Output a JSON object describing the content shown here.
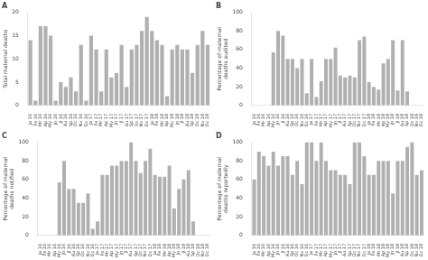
{
  "chart_data": [
    {
      "type": "bar",
      "title": "A",
      "ylabel": "Total maternal deaths",
      "categories": [
        "Ja 16",
        "Fe 16",
        "Mr 16",
        "Ap 16",
        "My 16",
        "Jn 16",
        "Jl 16",
        "Au 16",
        "Sp 16",
        "Oc 16",
        "Nv 16",
        "Dc 16",
        "Ja 17",
        "Fe 17",
        "Mr 17",
        "Ap 17",
        "My 17",
        "Jn 17",
        "Jl 17",
        "Au 17",
        "Sp 17",
        "Oc 17",
        "Nv 17",
        "Dc 17",
        "Ja 18",
        "Fe 18",
        "Mr 18",
        "Ap 18",
        "My 18",
        "Jn 18",
        "Jl 18",
        "Au 18",
        "Sp 18",
        "Oc 18",
        "Nv 18",
        "Dc 18"
      ],
      "values": [
        14,
        1,
        17,
        17,
        15,
        1,
        5,
        4,
        6,
        3,
        13,
        1,
        15,
        12,
        3,
        12,
        6,
        7,
        13,
        4,
        12,
        13,
        16,
        19,
        16,
        14,
        13,
        2,
        12,
        13,
        12,
        12,
        7,
        13,
        16,
        13
      ],
      "color": "#b0b0b0",
      "ylim": [
        0,
        20
      ],
      "yticks": [
        0,
        5,
        10,
        15,
        20
      ],
      "grid": false
    },
    {
      "type": "bar",
      "title": "B",
      "ylabel": "Percentage of maternal deaths audited",
      "categories": [
        "Ja 16",
        "Fe 16",
        "Mr 16",
        "Ap 16",
        "My 16",
        "Jn 16",
        "Jl 16",
        "Au 16",
        "Sp 16",
        "Oc 16",
        "Nv 16",
        "Dc 16",
        "Ja 17",
        "Fe 17",
        "Mr 17",
        "Ap 17",
        "My 17",
        "Jn 17",
        "Jl 17",
        "Au 17",
        "Sp 17",
        "Oc 17",
        "Nv 17",
        "Dc 17",
        "Ja 18",
        "Fe 18",
        "Mr 18",
        "Ap 18",
        "My 18",
        "Jn 18",
        "Jl 18",
        "Au 18",
        "Sp 18",
        "Oc 18",
        "Nv 18",
        "Dc 18"
      ],
      "values": [
        0,
        0,
        0,
        0,
        57,
        80,
        75,
        50,
        50,
        40,
        50,
        13,
        50,
        9,
        26,
        50,
        50,
        62,
        32,
        30,
        32,
        30,
        70,
        74,
        25,
        20,
        17,
        45,
        50,
        70,
        16,
        70,
        15,
        0,
        0,
        0
      ],
      "color": "#b0b0b0",
      "ylim": [
        0,
        100
      ],
      "yticks": [
        0,
        20,
        40,
        60,
        80,
        100
      ],
      "grid": false
    },
    {
      "type": "bar",
      "title": "C",
      "ylabel": "Percentage of maternal deaths notified",
      "categories": [
        "Ja 16",
        "Fe 16",
        "Mr 16",
        "Ap 16",
        "My 16",
        "Jn 16",
        "Jl 16",
        "Au 16",
        "Sp 16",
        "Oc 16",
        "Nv 16",
        "Dc 16",
        "Ja 17",
        "Fe 17",
        "Mr 17",
        "Ap 17",
        "My 17",
        "Jn 17",
        "Jl 17",
        "Au 17",
        "Sp 17",
        "Oc 17",
        "Nv 17",
        "Dc 17",
        "Ja 18",
        "Fe 18",
        "Mr 18",
        "Ap 18",
        "My 18",
        "Jn 18",
        "Jl 18",
        "Au 18",
        "Sp 18",
        "Oc 18",
        "Nv 18",
        "Dc 18"
      ],
      "values": [
        0,
        0,
        0,
        0,
        57,
        80,
        50,
        50,
        35,
        35,
        45,
        7,
        15,
        65,
        65,
        75,
        75,
        80,
        80,
        100,
        80,
        67,
        80,
        93,
        65,
        63,
        63,
        75,
        29,
        50,
        60,
        70,
        15,
        0,
        0,
        0
      ],
      "color": "#b0b0b0",
      "ylim": [
        0,
        100
      ],
      "yticks": [
        0,
        20,
        40,
        60,
        80,
        100
      ],
      "grid": false
    },
    {
      "type": "bar",
      "title": "D",
      "ylabel": "Percentage of maternal deaths reportedly",
      "categories": [
        "Ja 16",
        "Fe 16",
        "Mr 16",
        "Ap 16",
        "My 16",
        "Jn 16",
        "Jl 16",
        "Au 16",
        "Sp 16",
        "Oc 16",
        "Nv 16",
        "Dc 16",
        "Ja 17",
        "Fe 17",
        "Mr 17",
        "Ap 17",
        "My 17",
        "Jn 17",
        "Jl 17",
        "Au 17",
        "Sp 17",
        "Oc 17",
        "Nv 17",
        "Dc 17",
        "Ja 18",
        "Fe 18",
        "Mr 18",
        "Ap 18",
        "My 18",
        "Jn 18",
        "Jl 18",
        "Au 18",
        "Sp 18",
        "Oc 18",
        "Nv 18",
        "Dc 18"
      ],
      "values": [
        60,
        90,
        85,
        75,
        90,
        75,
        85,
        85,
        65,
        80,
        55,
        100,
        100,
        80,
        100,
        80,
        70,
        70,
        65,
        65,
        55,
        100,
        100,
        85,
        65,
        65,
        80,
        80,
        80,
        45,
        80,
        80,
        95,
        100,
        65,
        70
      ],
      "color": "#b0b0b0",
      "ylim": [
        0,
        100
      ],
      "yticks": [
        0,
        20,
        40,
        60,
        80,
        100
      ],
      "grid": false
    }
  ]
}
